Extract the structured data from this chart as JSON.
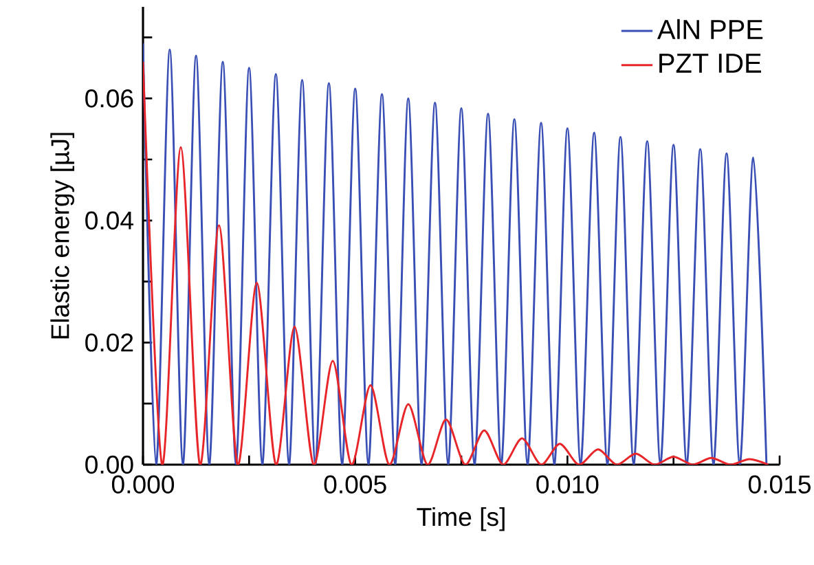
{
  "chart_data": {
    "type": "line",
    "xlabel": "Time [s]",
    "ylabel": "Elastic energy [µJ]",
    "xlim": [
      0,
      0.015
    ],
    "ylim": [
      0,
      0.075
    ],
    "xticks": [
      {
        "value": 0,
        "label": "0.000"
      },
      {
        "value": 0.0025,
        "label": null
      },
      {
        "value": 0.005,
        "label": "0.005"
      },
      {
        "value": 0.0075,
        "label": null
      },
      {
        "value": 0.01,
        "label": "0.010"
      },
      {
        "value": 0.0125,
        "label": null
      },
      {
        "value": 0.015,
        "label": "0.015"
      }
    ],
    "yticks": [
      {
        "value": 0,
        "label": "0.00"
      },
      {
        "value": 0.01,
        "label": null
      },
      {
        "value": 0.02,
        "label": "0.02"
      },
      {
        "value": 0.03,
        "label": null
      },
      {
        "value": 0.04,
        "label": "0.04"
      },
      {
        "value": 0.05,
        "label": null
      },
      {
        "value": 0.06,
        "label": "0.06"
      },
      {
        "value": 0.07,
        "label": null
      }
    ],
    "legend": "top right",
    "marker": "none",
    "line_style": "solid",
    "grid": false,
    "series": [
      {
        "name": "AlN PPE",
        "color": "#3a4fb5",
        "x": [
          0,
          0.00031,
          0.00063,
          0.00094,
          0.00125,
          0.00156,
          0.00188,
          0.00219,
          0.0025,
          0.00281,
          0.00313,
          0.00344,
          0.00375,
          0.00406,
          0.00438,
          0.00469,
          0.005,
          0.00531,
          0.00563,
          0.00594,
          0.00625,
          0.00656,
          0.00688,
          0.00719,
          0.0075,
          0.00781,
          0.00813,
          0.00844,
          0.00875,
          0.00906,
          0.00938,
          0.00969,
          0.01,
          0.01031,
          0.01063,
          0.01094,
          0.01125,
          0.01156,
          0.01188,
          0.01219,
          0.0125,
          0.01281,
          0.01313,
          0.01344,
          0.01375,
          0.01406,
          0.01438,
          0.01469
        ],
        "values": [
          0.069,
          0,
          0.068,
          0,
          0.067,
          0,
          0.066,
          0,
          0.065,
          0,
          0.064,
          0,
          0.063,
          0,
          0.0625,
          0,
          0.0616,
          0,
          0.0607,
          0,
          0.06,
          0,
          0.0593,
          0,
          0.0584,
          0,
          0.0575,
          0,
          0.0566,
          0,
          0.056,
          0,
          0.0551,
          0,
          0.0544,
          0,
          0.0537,
          0,
          0.053,
          0,
          0.0524,
          0,
          0.0517,
          0,
          0.051,
          0,
          0.0503,
          0
        ]
      },
      {
        "name": "PZT IDE",
        "color": "#e8262a",
        "x": [
          0,
          0.00045,
          0.00089,
          0.00134,
          0.00179,
          0.00223,
          0.00268,
          0.00313,
          0.00357,
          0.00402,
          0.00447,
          0.00491,
          0.00536,
          0.0058,
          0.00625,
          0.0067,
          0.00714,
          0.00759,
          0.00804,
          0.00848,
          0.00893,
          0.00938,
          0.00982,
          0.01027,
          0.01072,
          0.01116,
          0.01161,
          0.01205,
          0.0125,
          0.01295,
          0.01339,
          0.01384,
          0.01429,
          0.01473
        ],
        "values": [
          0.066,
          0,
          0.052,
          0,
          0.0392,
          0,
          0.0298,
          0,
          0.0226,
          0,
          0.017,
          0,
          0.013,
          0,
          0.0099,
          0,
          0.0074,
          0,
          0.0056,
          0,
          0.0043,
          0,
          0.0034,
          0,
          0.0025,
          0,
          0.0018,
          0,
          0.0013,
          0,
          0.0011,
          0,
          0.0009,
          0
        ]
      }
    ]
  }
}
